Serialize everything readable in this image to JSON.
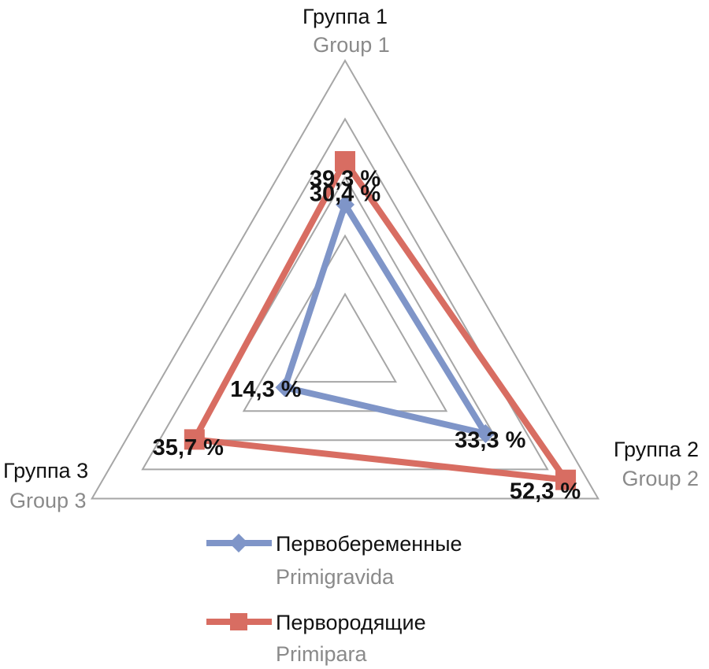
{
  "chart_data": {
    "type": "radar",
    "axes": [
      {
        "label_ru": "Группа 1",
        "label_en": "Group 1"
      },
      {
        "label_ru": "Группа 2",
        "label_en": "Group 2"
      },
      {
        "label_ru": "Группа 3",
        "label_en": "Group 3"
      }
    ],
    "rlim": [
      0,
      60
    ],
    "grid": true,
    "grid_rings": 5,
    "legend_position": "bottom",
    "series": [
      {
        "name_ru": "Первобеременные",
        "name_en": "Primigravida",
        "color": "#7f95c8",
        "marker": "diamond",
        "values": [
          30.4,
          33.3,
          14.3
        ],
        "value_labels": [
          "30,4 %",
          "33,3 %",
          "14,3 %"
        ]
      },
      {
        "name_ru": "Первородящие",
        "name_en": "Primipara",
        "color": "#d86d62",
        "marker": "square",
        "values": [
          39.3,
          52.3,
          35.7
        ],
        "value_labels": [
          "39,3 %",
          "52,3 %",
          "35,7 %"
        ]
      }
    ]
  }
}
